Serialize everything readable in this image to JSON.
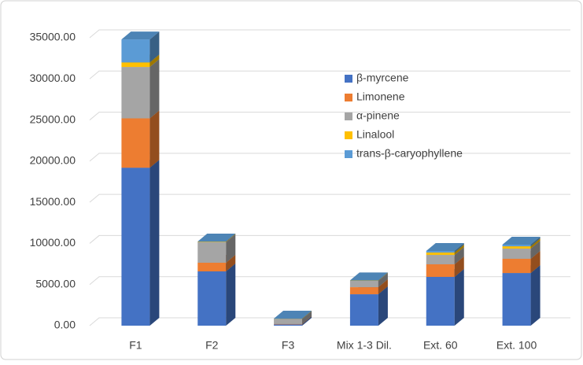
{
  "chart_data": {
    "type": "bar3d_stacked",
    "categories": [
      "F1",
      "F2",
      "F3",
      "Mix 1-3 Dil.",
      "Ext. 60",
      "Ext. 100"
    ],
    "series": [
      {
        "name": "β-myrcene",
        "color": "#4472c4",
        "values": [
          19200,
          6600,
          150,
          3820,
          5930,
          6400
        ]
      },
      {
        "name": "Limonene",
        "color": "#ed7d31",
        "values": [
          6000,
          1050,
          50,
          860,
          1530,
          1730
        ]
      },
      {
        "name": "α-pinene",
        "color": "#a5a5a5",
        "values": [
          6250,
          2500,
          600,
          770,
          1140,
          1240
        ]
      },
      {
        "name": "Linalool",
        "color": "#ffc000",
        "values": [
          550,
          50,
          20,
          30,
          290,
          280
        ]
      },
      {
        "name": "trans-β-caryophyllene",
        "color": "#5b9bd5",
        "values": [
          2800,
          30,
          40,
          30,
          190,
          200
        ]
      }
    ],
    "ylim": [
      0,
      35000
    ],
    "yticks": [
      {
        "value": 0,
        "label": "0.00"
      },
      {
        "value": 5000,
        "label": "5000.00"
      },
      {
        "value": 10000,
        "label": "10000.00"
      },
      {
        "value": 15000,
        "label": "15000.00"
      },
      {
        "value": 20000,
        "label": "20000.00"
      },
      {
        "value": 25000,
        "label": "25000.00"
      },
      {
        "value": 30000,
        "label": "30000.00"
      },
      {
        "value": 35000,
        "label": "35000.00"
      }
    ],
    "grid": true
  }
}
